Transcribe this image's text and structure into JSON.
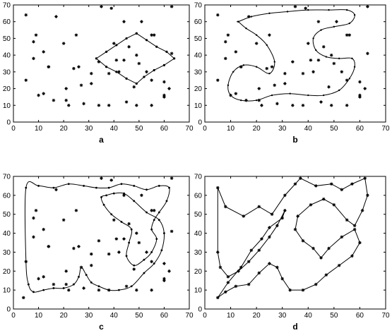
{
  "chart_data": [
    {
      "type": "scatter",
      "panel_label": "a",
      "xlim": [
        0,
        70
      ],
      "ylim": [
        0,
        70
      ],
      "xticks": [
        "0",
        "10",
        "20",
        "30",
        "40",
        "50",
        "60",
        "70"
      ],
      "yticks": [
        "0",
        "10",
        "20",
        "30",
        "40",
        "50",
        "60",
        "70"
      ],
      "grid": false,
      "series": [
        {
          "style": "points",
          "x": [
            5,
            9,
            8,
            12,
            16,
            22,
            28,
            34,
            38,
            45,
            49,
            55,
            60,
            62,
            63,
            8,
            14,
            20,
            25,
            31,
            40,
            56,
            63,
            12,
            17,
            21,
            26,
            31,
            38,
            44,
            50,
            60,
            5,
            10,
            14,
            21,
            24,
            27,
            34,
            42,
            48,
            55,
            60,
            35,
            39,
            44,
            51,
            55,
            46,
            41,
            49,
            53
          ],
          "y": [
            64,
            52,
            38,
            17,
            13,
            10,
            11,
            10,
            10,
            12,
            10,
            10,
            15,
            20,
            69,
            48,
            33,
            47,
            52,
            29,
            47,
            52,
            41,
            42,
            63,
            13,
            33,
            23,
            29,
            37,
            35,
            16,
            25,
            16,
            33,
            20,
            32,
            22,
            36,
            30,
            21,
            25,
            24,
            69,
            68,
            60,
            60,
            52,
            45,
            37,
            40,
            30
          ]
        },
        {
          "style": "line-with-markers",
          "x": [
            49,
            53,
            57,
            61,
            64,
            60,
            56,
            52,
            49,
            45,
            41,
            37,
            33,
            37,
            41,
            45,
            49
          ],
          "y": [
            53,
            49,
            45,
            42,
            38,
            34,
            31,
            27,
            23,
            26,
            30,
            33,
            38,
            42,
            46,
            50,
            53
          ]
        }
      ]
    },
    {
      "type": "scatter",
      "panel_label": "b",
      "xlim": [
        0,
        70
      ],
      "ylim": [
        0,
        70
      ],
      "xticks": [
        "0",
        "10",
        "20",
        "30",
        "40",
        "50",
        "60",
        "70"
      ],
      "yticks": [
        "0",
        "10",
        "20",
        "30",
        "40",
        "50",
        "60",
        "70"
      ],
      "grid": false,
      "series": [
        {
          "style": "points",
          "x": [
            5,
            9,
            8,
            12,
            16,
            22,
            28,
            34,
            38,
            45,
            49,
            55,
            60,
            62,
            63,
            8,
            14,
            20,
            25,
            31,
            40,
            56,
            63,
            12,
            17,
            21,
            26,
            31,
            38,
            44,
            50,
            60,
            5,
            10,
            14,
            21,
            24,
            27,
            34,
            42,
            48,
            55,
            60,
            35,
            39,
            44,
            51,
            55,
            46,
            41,
            49,
            53
          ],
          "y": [
            64,
            52,
            38,
            17,
            13,
            10,
            11,
            10,
            10,
            12,
            10,
            10,
            15,
            20,
            69,
            48,
            33,
            47,
            52,
            29,
            47,
            52,
            41,
            42,
            63,
            13,
            33,
            23,
            29,
            37,
            35,
            16,
            25,
            16,
            33,
            20,
            32,
            22,
            36,
            30,
            21,
            25,
            24,
            69,
            68,
            60,
            60,
            52,
            45,
            37,
            40,
            30
          ]
        },
        {
          "style": "closed-curve",
          "x": [
            13,
            18,
            25,
            32,
            40,
            48,
            55,
            58,
            56,
            50,
            45,
            42,
            43,
            47,
            52,
            57,
            58,
            56,
            52,
            46,
            40,
            33,
            26,
            20,
            14,
            10,
            9,
            11,
            15,
            20,
            25,
            27,
            24,
            20,
            16,
            13
          ],
          "y": [
            60,
            63,
            65,
            66,
            67,
            67,
            67,
            64,
            59,
            57,
            55,
            50,
            43,
            39,
            38,
            38,
            33,
            26,
            19,
            16,
            16,
            17,
            16,
            13,
            13,
            16,
            22,
            30,
            34,
            33,
            29,
            36,
            46,
            52,
            56,
            60
          ]
        }
      ]
    },
    {
      "type": "scatter",
      "panel_label": "c",
      "xlim": [
        0,
        70
      ],
      "ylim": [
        0,
        70
      ],
      "xticks": [
        "0",
        "10",
        "20",
        "30",
        "40",
        "50",
        "60",
        "70"
      ],
      "yticks": [
        "0",
        "10",
        "20",
        "30",
        "40",
        "50",
        "60",
        "70"
      ],
      "grid": false,
      "series": [
        {
          "style": "points",
          "x": [
            4,
            9,
            8,
            12,
            16,
            22,
            28,
            34,
            38,
            45,
            49,
            55,
            60,
            62,
            63,
            8,
            14,
            20,
            25,
            31,
            40,
            56,
            63,
            12,
            17,
            21,
            26,
            31,
            38,
            44,
            50,
            60,
            5,
            10,
            14,
            21,
            24,
            27,
            34,
            42,
            48,
            55,
            60,
            35,
            39,
            44,
            51,
            55,
            46,
            41,
            49,
            53
          ],
          "y": [
            6,
            52,
            38,
            17,
            13,
            10,
            11,
            10,
            10,
            12,
            10,
            10,
            15,
            20,
            69,
            48,
            33,
            47,
            52,
            29,
            47,
            52,
            41,
            42,
            63,
            13,
            33,
            23,
            29,
            37,
            35,
            16,
            25,
            16,
            33,
            20,
            32,
            22,
            36,
            30,
            21,
            25,
            24,
            69,
            68,
            60,
            60,
            52,
            45,
            37,
            40,
            30
          ]
        },
        {
          "style": "closed-curve-with-markers",
          "x": [
            5,
            10,
            16,
            22,
            28,
            33,
            38,
            43,
            48,
            53,
            58,
            62,
            61,
            58,
            56,
            55,
            57,
            55,
            52,
            48,
            45,
            46,
            47,
            43,
            39,
            36,
            35,
            37,
            40,
            44,
            48,
            53,
            58,
            60,
            59,
            56,
            52,
            47,
            42,
            38,
            34,
            31,
            29,
            27,
            26,
            24,
            20,
            16,
            12,
            8,
            6,
            5
          ],
          "y": [
            64,
            65,
            64,
            66,
            65,
            64,
            64,
            66,
            65,
            63,
            65,
            64,
            57,
            51,
            47,
            42,
            37,
            30,
            26,
            23,
            28,
            35,
            42,
            46,
            50,
            55,
            59,
            60,
            61,
            61,
            57,
            51,
            47,
            40,
            31,
            24,
            19,
            12,
            10,
            10,
            12,
            14,
            18,
            22,
            17,
            13,
            11,
            11,
            10,
            9,
            13,
            25
          ]
        }
      ]
    },
    {
      "type": "scatter",
      "panel_label": "d",
      "xlim": [
        0,
        70
      ],
      "ylim": [
        0,
        70
      ],
      "xticks": [
        "0",
        "10",
        "20",
        "30",
        "40",
        "50",
        "60",
        "70"
      ],
      "yticks": [
        "0",
        "10",
        "20",
        "30",
        "40",
        "50",
        "60",
        "70"
      ],
      "grid": false,
      "series": [
        {
          "style": "polygon-with-markers",
          "x": [
            5,
            8,
            15,
            21,
            26,
            31,
            35,
            37,
            43,
            49,
            53,
            57,
            62,
            63,
            61,
            58,
            55,
            50,
            46,
            41,
            36,
            35,
            38,
            42,
            45,
            48,
            53,
            58,
            60,
            57,
            52,
            47,
            43,
            38,
            33,
            30,
            28,
            25,
            21,
            17,
            12,
            8,
            5,
            9,
            14,
            18,
            22,
            25,
            30,
            31,
            28,
            25,
            21,
            17,
            13,
            9,
            6,
            5
          ],
          "y": [
            64,
            54,
            49,
            54,
            50,
            60,
            66,
            69,
            65,
            66,
            63,
            66,
            69,
            60,
            52,
            44,
            47,
            55,
            58,
            55,
            49,
            42,
            36,
            32,
            27,
            32,
            38,
            42,
            35,
            28,
            23,
            18,
            13,
            10,
            10,
            16,
            22,
            24,
            19,
            13,
            12,
            9,
            6,
            14,
            22,
            31,
            37,
            43,
            48,
            52,
            44,
            38,
            31,
            25,
            20,
            17,
            22,
            30
          ]
        }
      ]
    }
  ]
}
